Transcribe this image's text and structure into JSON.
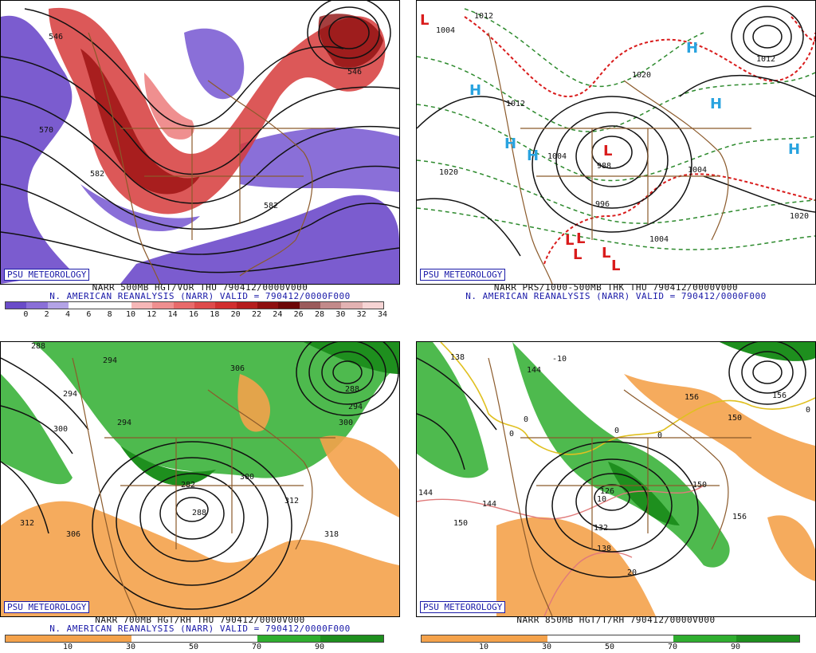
{
  "panels": {
    "p1": {
      "badge": "PSU METEOROLOGY",
      "caption1": "NARR 500MB HGT/VOR THU 790412/0000V000",
      "caption2": "N. AMERICAN REANALYSIS (NARR) VALID = 790412/0000F000",
      "contour_labels": [
        "546",
        "546",
        "570",
        "582",
        "582"
      ],
      "colorbar_ticks": [
        "0",
        "2",
        "4",
        "6",
        "8",
        "10",
        "12",
        "14",
        "16",
        "18",
        "20",
        "22",
        "24",
        "26",
        "28",
        "30",
        "32",
        "34"
      ],
      "colorbar_colors": [
        "#6a4cc8",
        "#8a6fd8",
        "#b3a3e6",
        "#ffffff",
        "#ffffff",
        "#ffffff",
        "#f6b7b7",
        "#ef8f8f",
        "#e86a6a",
        "#de4b4b",
        "#d12f2f",
        "#b51d1d",
        "#8e0f0f",
        "#6d0707",
        "#9b5b5b",
        "#c28a8a",
        "#e2b2b2",
        "#f6d4d4"
      ]
    },
    "p2": {
      "badge": "PSU METEOROLOGY",
      "caption1": "NARR PRS/1000-500MB THK THU 790412/0000V000",
      "caption2": "N. AMERICAN REANALYSIS (NARR) VALID = 790412/0000F000",
      "contour_labels": [
        "1012",
        "1004",
        "1012",
        "1020",
        "1004",
        "988",
        "996",
        "1020",
        "1004",
        "1020",
        "1012",
        "1004"
      ],
      "highs": [
        "H",
        "H",
        "H",
        "H",
        "H",
        "H"
      ],
      "lows": [
        "L",
        "L",
        "L",
        "L",
        "L",
        "L",
        "L"
      ]
    },
    "p3": {
      "badge": "PSU METEOROLOGY",
      "caption1": "NARR 700MB HGT/RH THU 790412/0000V000",
      "caption2": "N. AMERICAN REANALYSIS (NARR) VALID = 790412/0000F000",
      "contour_labels": [
        "288",
        "294",
        "306",
        "294",
        "294",
        "300",
        "288",
        "294",
        "300",
        "282",
        "288",
        "300",
        "312",
        "312",
        "306",
        "318"
      ],
      "colorbar_ticks": [
        "10",
        "30",
        "50",
        "70",
        "90"
      ]
    },
    "p4": {
      "badge": "PSU METEOROLOGY",
      "caption1": "NARR 850MB HGT/T/RH 790412/0000V000",
      "contour_labels": [
        "138",
        "144",
        "-10",
        "0",
        "0",
        "0",
        "0",
        "156",
        "150",
        "144",
        "126",
        "10",
        "132",
        "138",
        "150",
        "144",
        "150",
        "20",
        "156",
        "0",
        "156"
      ],
      "colorbar_ticks": [
        "10",
        "30",
        "50",
        "70",
        "90"
      ]
    }
  },
  "colors": {
    "badge_blue": "#1a1aa8",
    "green": "#2fae2f",
    "orange": "#f4a24b",
    "purple": "#7b5ccf",
    "red": "#c91d1d"
  }
}
